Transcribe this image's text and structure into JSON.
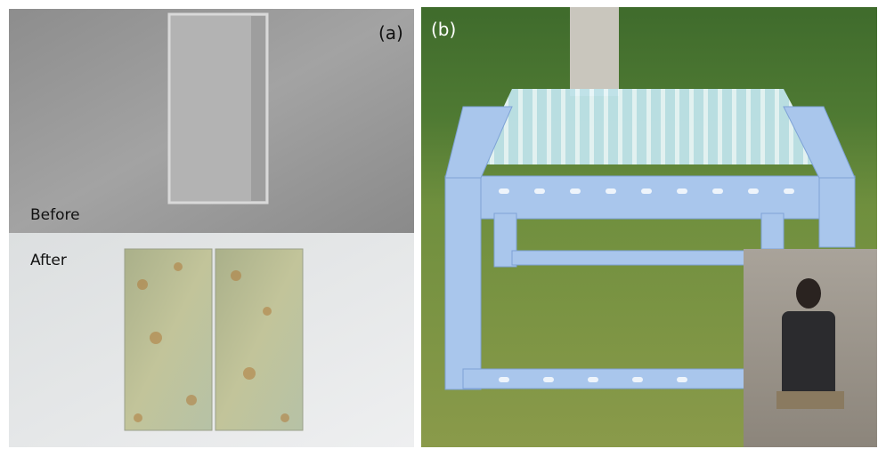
{
  "panels": [
    {
      "label": "(a)",
      "captions": [
        "Before",
        "After"
      ]
    },
    {
      "label": "(b)"
    }
  ]
}
